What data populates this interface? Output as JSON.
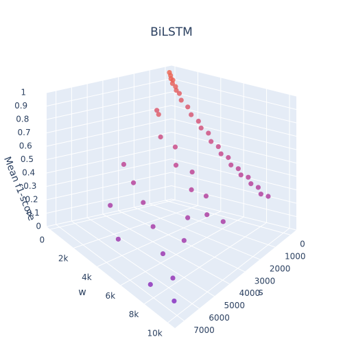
{
  "chart_data": {
    "type": "scatter3d",
    "title": "BiLSTM",
    "xlabel": "s",
    "ylabel": "w",
    "zlabel": "Mean f1-score",
    "x": [
      100,
      100,
      150,
      100,
      200,
      150,
      250,
      200,
      300,
      250,
      400,
      300,
      500,
      400,
      600,
      500,
      700,
      600,
      800,
      700,
      900,
      800,
      1000,
      900,
      1100,
      1000,
      1500,
      2000,
      1800,
      2500,
      2200,
      3000,
      2800,
      3500,
      3200,
      4000,
      4500,
      5000,
      5500,
      6000,
      6500,
      5000,
      6000,
      7000,
      7200,
      6800,
      4000,
      2500
    ],
    "y": [
      200,
      300,
      400,
      500,
      600,
      800,
      1000,
      1200,
      1500,
      2000,
      2500,
      3000,
      3500,
      4000,
      4500,
      5000,
      5500,
      6000,
      6500,
      7000,
      7500,
      8000,
      8500,
      9000,
      9500,
      10000,
      1000,
      2000,
      3000,
      4000,
      5000,
      6000,
      7000,
      8000,
      9000,
      1500,
      3000,
      4500,
      6000,
      7500,
      9000,
      8000,
      3000,
      5000,
      8000,
      9500,
      7000,
      2500
    ],
    "z": [
      0.97,
      0.95,
      0.93,
      0.92,
      0.9,
      0.88,
      0.86,
      0.84,
      0.8,
      0.76,
      0.72,
      0.68,
      0.65,
      0.62,
      0.58,
      0.55,
      0.52,
      0.5,
      0.47,
      0.45,
      0.43,
      0.42,
      0.4,
      0.38,
      0.36,
      0.35,
      0.75,
      0.6,
      0.55,
      0.48,
      0.45,
      0.4,
      0.38,
      0.33,
      0.3,
      0.45,
      0.4,
      0.35,
      0.28,
      0.2,
      0.15,
      0.25,
      0.3,
      0.22,
      0.1,
      0.05,
      0.3,
      0.8
    ],
    "xlim": [
      -400,
      7600
    ],
    "ylim": [
      -300,
      10600
    ],
    "zlim": [
      0,
      1
    ],
    "xticks": [
      0,
      1000,
      2000,
      3000,
      4000,
      5000,
      6000,
      7000
    ],
    "yticks": [
      0,
      {
        "value": 2000,
        "label": "2k"
      },
      {
        "value": 4000,
        "label": "4k"
      },
      {
        "value": 6000,
        "label": "6k"
      },
      {
        "value": 8000,
        "label": "8k"
      },
      {
        "value": 10000,
        "label": "10k"
      }
    ],
    "zticks": [
      0,
      0.1,
      0.2,
      0.3,
      0.4,
      0.5,
      0.6,
      0.7,
      0.8,
      0.9,
      1
    ],
    "colorscale": [
      "#7b22c4",
      "#c2408a",
      "#f06448"
    ],
    "grid": true
  }
}
